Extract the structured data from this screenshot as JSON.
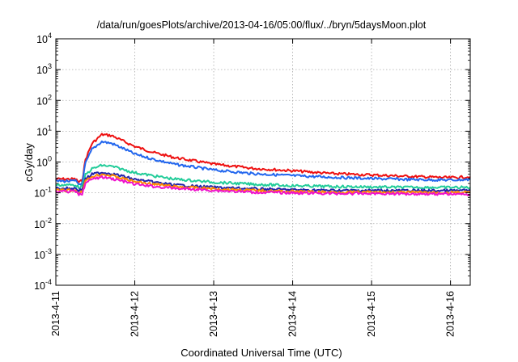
{
  "chart_data": {
    "type": "line",
    "title": "/data/run/goesPlots/archive/2013-04-16/05:00/flux/../bryn/5daysMoon.plot",
    "xlabel": "Coordinated Universal Time (UTC)",
    "ylabel": "cGy/day",
    "x_range": [
      "2013-04-11T00:00",
      "2013-04-16T06:00"
    ],
    "x_ticks": [
      "2013-4-11",
      "2013-4-12",
      "2013-4-13",
      "2013-4-14",
      "2013-4-15",
      "2013-4-16"
    ],
    "y_scale": "log",
    "ylim": [
      0.0001,
      10000
    ],
    "y_ticks": [
      {
        "base": "10",
        "exp": "-4"
      },
      {
        "base": "10",
        "exp": "-3"
      },
      {
        "base": "10",
        "exp": "-2"
      },
      {
        "base": "10",
        "exp": "-1"
      },
      {
        "base": "10",
        "exp": "0"
      },
      {
        "base": "10",
        "exp": "1"
      },
      {
        "base": "10",
        "exp": "2"
      },
      {
        "base": "10",
        "exp": "3"
      },
      {
        "base": "10",
        "exp": "4"
      }
    ],
    "grid": true,
    "x": [
      "2013-04-11T00:00",
      "2013-04-11T06:00",
      "2013-04-11T07:00",
      "2013-04-11T08:00",
      "2013-04-11T09:00",
      "2013-04-11T11:00",
      "2013-04-11T14:00",
      "2013-04-11T17:00",
      "2013-04-11T21:00",
      "2013-04-12T00:00",
      "2013-04-12T06:00",
      "2013-04-12T12:00",
      "2013-04-13T00:00",
      "2013-04-13T12:00",
      "2013-04-14T00:00",
      "2013-04-14T12:00",
      "2013-04-15T00:00",
      "2013-04-15T12:00",
      "2013-04-16T00:00",
      "2013-04-16T06:00"
    ],
    "series": [
      {
        "color": "#ee1111",
        "values": [
          0.28,
          0.28,
          0.22,
          0.25,
          1.2,
          4.0,
          7.8,
          7.2,
          4.5,
          3.2,
          2.0,
          1.4,
          0.85,
          0.62,
          0.52,
          0.42,
          0.38,
          0.34,
          0.31,
          0.33
        ]
      },
      {
        "color": "#2266ee",
        "values": [
          0.24,
          0.24,
          0.19,
          0.2,
          0.9,
          2.6,
          4.6,
          4.0,
          2.6,
          1.8,
          1.2,
          0.85,
          0.55,
          0.42,
          0.36,
          0.32,
          0.29,
          0.27,
          0.26,
          0.27
        ]
      },
      {
        "color": "#22cc99",
        "values": [
          0.18,
          0.18,
          0.15,
          0.16,
          0.38,
          0.6,
          0.78,
          0.72,
          0.55,
          0.45,
          0.35,
          0.28,
          0.22,
          0.19,
          0.17,
          0.16,
          0.155,
          0.15,
          0.15,
          0.15
        ]
      },
      {
        "color": "#2222aa",
        "values": [
          0.14,
          0.14,
          0.12,
          0.13,
          0.28,
          0.4,
          0.46,
          0.42,
          0.33,
          0.27,
          0.22,
          0.18,
          0.15,
          0.135,
          0.125,
          0.12,
          0.12,
          0.118,
          0.118,
          0.12
        ]
      },
      {
        "color": "#ff8800",
        "values": [
          0.12,
          0.12,
          0.1,
          0.11,
          0.24,
          0.34,
          0.4,
          0.36,
          0.28,
          0.23,
          0.19,
          0.16,
          0.135,
          0.12,
          0.11,
          0.105,
          0.105,
          0.103,
          0.102,
          0.104
        ]
      },
      {
        "color": "#ee11cc",
        "values": [
          0.11,
          0.11,
          0.085,
          0.095,
          0.2,
          0.28,
          0.32,
          0.29,
          0.23,
          0.19,
          0.16,
          0.14,
          0.12,
          0.105,
          0.1,
          0.095,
          0.095,
          0.093,
          0.092,
          0.088
        ]
      }
    ]
  }
}
